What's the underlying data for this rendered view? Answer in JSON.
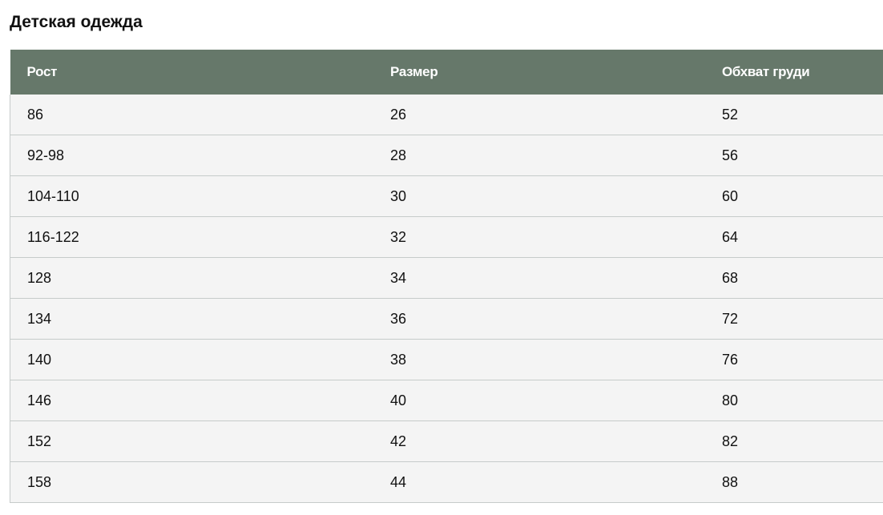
{
  "title": "Детская одежда",
  "colors": {
    "header_bg": "#66786a",
    "row_bg": "#f4f4f4",
    "border": "#c6cbca"
  },
  "table": {
    "headers": [
      "Рост",
      "Размер",
      "Обхват груди"
    ],
    "rows": [
      [
        "86",
        "26",
        "52"
      ],
      [
        "92-98",
        "28",
        "56"
      ],
      [
        "104-110",
        "30",
        "60"
      ],
      [
        "116-122",
        "32",
        "64"
      ],
      [
        "128",
        "34",
        "68"
      ],
      [
        "134",
        "36",
        "72"
      ],
      [
        "140",
        "38",
        "76"
      ],
      [
        "146",
        "40",
        "80"
      ],
      [
        "152",
        "42",
        "82"
      ],
      [
        "158",
        "44",
        "88"
      ]
    ]
  }
}
